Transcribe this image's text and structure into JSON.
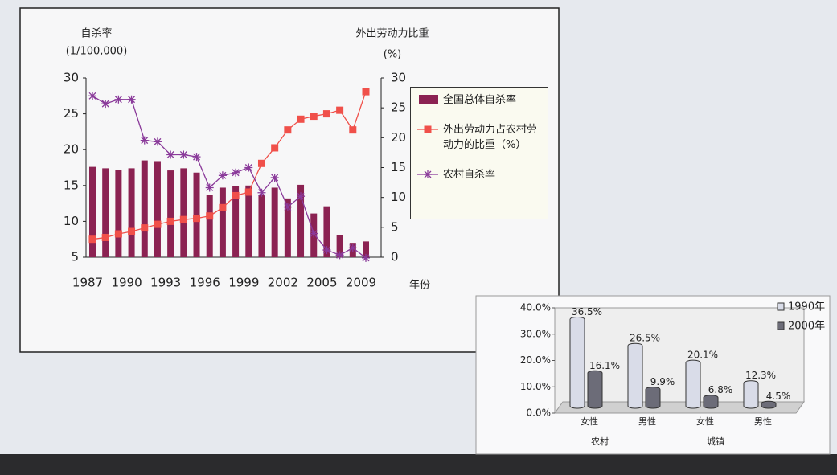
{
  "chart_data": [
    {
      "type": "bar",
      "ylabel": "自杀率",
      "yunit": "(1/100,000)",
      "y2label": "外出劳动力比重",
      "y2unit": "(%)",
      "xlabel": "年份",
      "categories": [
        "1987",
        null,
        null,
        "1990",
        null,
        null,
        "1993",
        null,
        null,
        "1996",
        null,
        null,
        "1999",
        null,
        null,
        "2002",
        null,
        null,
        "2005",
        null,
        null,
        "2009"
      ],
      "series": [
        {
          "name": "全国总体自杀率",
          "type": "bar",
          "color": "#8b2252",
          "values": [
            17.6,
            17.4,
            17.2,
            17.4,
            18.5,
            18.4,
            17.1,
            17.4,
            16.8,
            13.7,
            14.7,
            14.9,
            15.0,
            13.7,
            14.7,
            13.2,
            15.1,
            11.1,
            12.1,
            8.1,
            7.0,
            7.2
          ]
        },
        {
          "name": "外出劳动力占农村劳动力的比重（%）",
          "type": "line",
          "marker": "square",
          "axis": "y2",
          "color": "#f0504a",
          "values": [
            3.0,
            3.3,
            3.9,
            4.3,
            4.9,
            5.5,
            6.0,
            6.3,
            6.5,
            6.9,
            8.3,
            10.3,
            10.9,
            15.7,
            18.3,
            21.3,
            23.1,
            23.6,
            24.0,
            24.6,
            21.3,
            27.7
          ]
        },
        {
          "name": "农村自杀率",
          "type": "line",
          "marker": "star",
          "color": "#8a3a9a",
          "values": [
            27.5,
            26.4,
            27.0,
            27.0,
            21.3,
            21.1,
            19.3,
            19.3,
            19.0,
            14.7,
            16.4,
            16.8,
            17.5,
            14.0,
            16.1,
            12.0,
            13.5,
            8.3,
            6.0,
            5.3,
            6.3,
            4.9
          ]
        }
      ],
      "ylim": [
        5,
        30
      ],
      "yticks": [
        5,
        10,
        15,
        20,
        25,
        30
      ],
      "y2lim": [
        0,
        30
      ],
      "y2ticks": [
        0,
        5,
        10,
        15,
        20,
        25,
        30
      ]
    },
    {
      "type": "bar",
      "categories": [
        "女性",
        "男性",
        "女性",
        "男性"
      ],
      "group_labels": [
        "农村",
        "城镇"
      ],
      "series": [
        {
          "name": "1990年",
          "color": "#d9dce8",
          "values": [
            36.5,
            26.5,
            20.1,
            12.3
          ],
          "value_labels": [
            "36.5%",
            "26.5%",
            "20.1%",
            "12.3%"
          ]
        },
        {
          "name": "2000年",
          "color": "#6c6c78",
          "values": [
            16.1,
            9.9,
            6.8,
            4.5
          ],
          "value_labels": [
            "16.1%",
            "9.9%",
            "6.8%",
            "4.5%"
          ]
        }
      ],
      "ylim": [
        0,
        40
      ],
      "yticks": [
        {
          "value": 0,
          "label": "0.0%"
        },
        {
          "value": 10,
          "label": "10.0%"
        },
        {
          "value": 20,
          "label": "20.0%"
        },
        {
          "value": 30,
          "label": "30.0%"
        },
        {
          "value": 40,
          "label": "40.0%"
        }
      ]
    }
  ]
}
